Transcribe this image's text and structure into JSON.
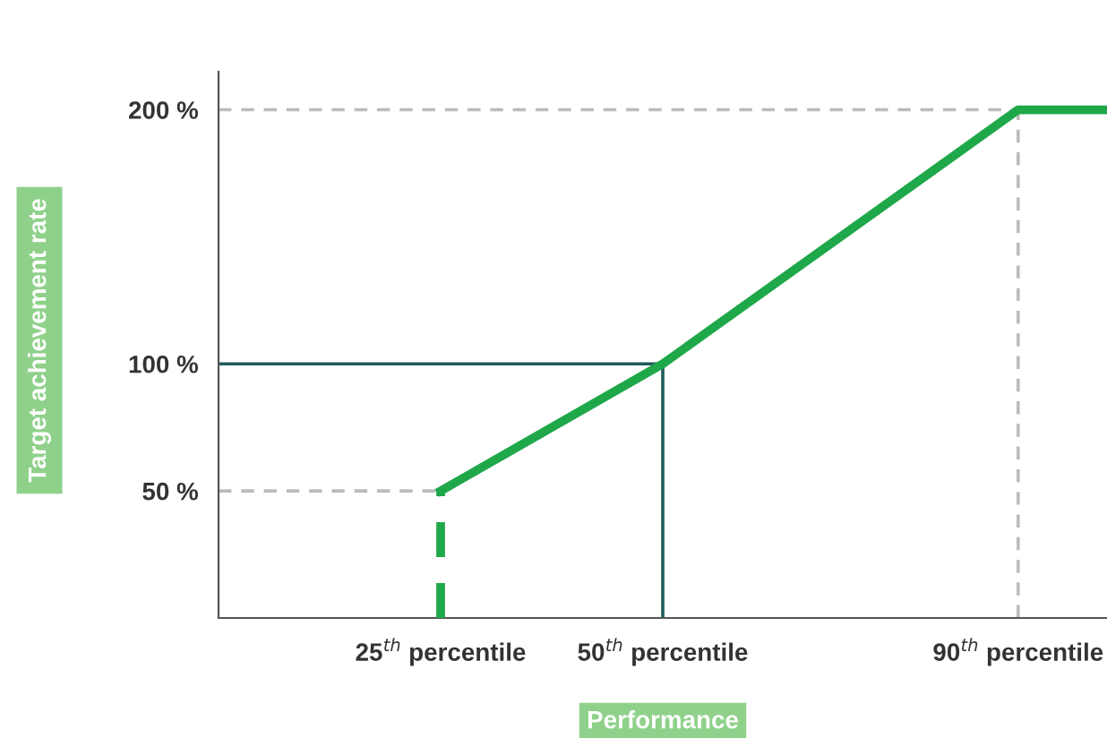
{
  "chart_data": {
    "type": "line",
    "xlabel": "Performance",
    "ylabel": "Target achievement rate",
    "xlim": [
      0,
      100
    ],
    "ylim": [
      0,
      215
    ],
    "xticks": [
      {
        "value": 25,
        "label": "25$^{th}$ percentile"
      },
      {
        "value": 50,
        "label": "50$^{th}$ percentile"
      },
      {
        "value": 90,
        "label": "90$^{th}$ percentile"
      }
    ],
    "yticks": [
      {
        "value": 50,
        "label": "50 %"
      },
      {
        "value": 100,
        "label": "100 %"
      },
      {
        "value": 200,
        "label": "200 %"
      }
    ],
    "series": [
      {
        "color": "#1fa84a",
        "x": [
          25,
          50,
          90,
          100
        ],
        "values": [
          50,
          100,
          200,
          200
        ],
        "line_style": "solid"
      },
      {
        "color": "#1fa84a",
        "x": [
          25,
          25
        ],
        "values": [
          0,
          50
        ],
        "line_style": "dashed"
      }
    ],
    "ref_lines": [
      {
        "axis": "y",
        "value": 50,
        "color": "#bbbbbb",
        "line_style": "dashed"
      },
      {
        "axis": "y",
        "value": 200,
        "color": "#bbbbbb",
        "line_style": "dashed"
      },
      {
        "axis": "x",
        "value": 90,
        "color": "#bbbbbb",
        "line_style": "dashed"
      },
      {
        "axis": "y",
        "value": 100,
        "color": "#1f5c5a",
        "line_style": "solid"
      },
      {
        "axis": "x",
        "value": 50,
        "color": "#1f5c5a",
        "line_style": "solid"
      }
    ],
    "grid": false,
    "legend": false
  }
}
